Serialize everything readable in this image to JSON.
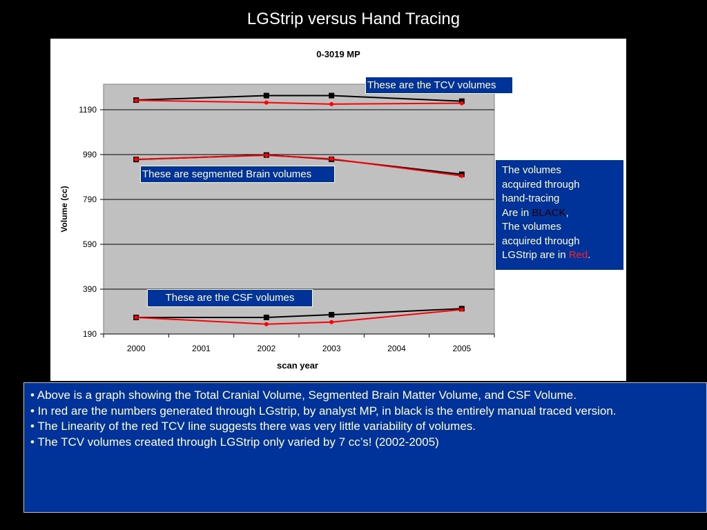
{
  "slide": {
    "title": "LGStrip versus Hand Tracing"
  },
  "colors": {
    "background": "#000000",
    "panel_blue": "#003399",
    "plot_area": "#c0c0c0",
    "hand_tracing": "#000000",
    "lgstrip": "#ff0000"
  },
  "callouts": {
    "tcv": "These are the TCV volumes",
    "brain": "These are segmented Brain volumes",
    "csf": "These are the CSF volumes"
  },
  "legend_box": {
    "line1": "The volumes",
    "line2": "acquired through",
    "line3": "hand-tracing",
    "line4_prefix": "Are in ",
    "line4_black": "BLACK",
    "line4_suffix": ",",
    "line5": "The volumes",
    "line6": "acquired through",
    "line7_prefix": "LGStrip are in ",
    "line7_red": "Red",
    "line7_suffix": "."
  },
  "notes": [
    "• Above is a graph showing the Total Cranial Volume, Segmented Brain Matter Volume, and CSF Volume.",
    "• In red are the numbers generated through LGstrip, by analyst MP, in black is the entirely manual traced version.",
    "• The Linearity of the red TCV line suggests there was very little variability of volumes.",
    "• The TCV volumes created through LGStrip only varied by 7 cc’s! (2002-2005)"
  ],
  "chart_data": {
    "type": "line",
    "title": "0-3019 MP",
    "xlabel": "scan year",
    "ylabel": "Volume (cc)",
    "categories": [
      "2000",
      "2001",
      "2002",
      "2003",
      "2004",
      "2005"
    ],
    "yticks": [
      "1190",
      "990",
      "790",
      "590",
      "390",
      "190"
    ],
    "ylim": [
      190,
      1310
    ],
    "grid": true,
    "series": [
      {
        "group": "TCV",
        "method": "hand-tracing",
        "color": "#000000",
        "marker": "square",
        "x": [
          "2000",
          "2002",
          "2003",
          "2005"
        ],
        "values": [
          1233,
          1253,
          1253,
          1228
        ]
      },
      {
        "group": "TCV",
        "method": "LGStrip",
        "color": "#ff0000",
        "marker": "circle",
        "x": [
          "2000",
          "2002",
          "2003",
          "2005"
        ],
        "values": [
          1232,
          1222,
          1215,
          1219
        ]
      },
      {
        "group": "Brain",
        "method": "hand-tracing",
        "color": "#000000",
        "marker": "square",
        "x": [
          "2000",
          "2002",
          "2003",
          "2005"
        ],
        "values": [
          968,
          988,
          969,
          902
        ]
      },
      {
        "group": "Brain",
        "method": "LGStrip",
        "color": "#ff0000",
        "marker": "circle",
        "x": [
          "2000",
          "2002",
          "2003",
          "2005"
        ],
        "values": [
          969,
          987,
          971,
          895
        ]
      },
      {
        "group": "CSF",
        "method": "hand-tracing",
        "color": "#000000",
        "marker": "square",
        "x": [
          "2000",
          "2002",
          "2003",
          "2005"
        ],
        "values": [
          264,
          264,
          276,
          303
        ]
      },
      {
        "group": "CSF",
        "method": "LGStrip",
        "color": "#ff0000",
        "marker": "circle",
        "x": [
          "2000",
          "2002",
          "2003",
          "2005"
        ],
        "values": [
          264,
          234,
          243,
          299
        ]
      }
    ]
  }
}
